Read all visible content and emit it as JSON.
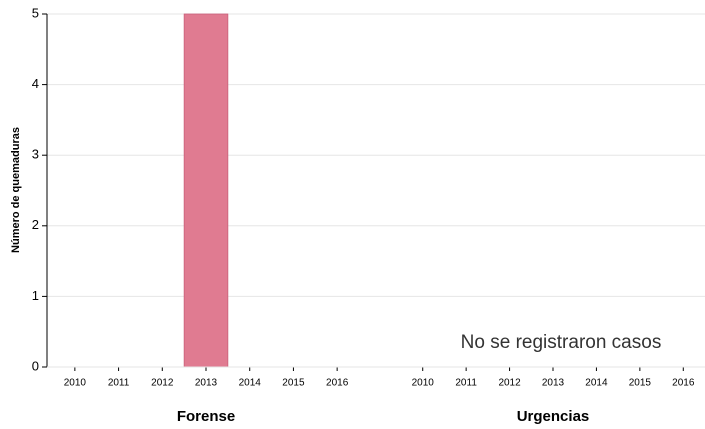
{
  "chart_data": {
    "type": "bar",
    "y_label": "Número de quemaduras",
    "ylim": [
      0,
      5
    ],
    "yticks": [
      0,
      1,
      2,
      3,
      4,
      5
    ],
    "grid": true,
    "panels": [
      {
        "title": "Forense",
        "color": "#e07b91",
        "categories": [
          "2010",
          "2011",
          "2012",
          "2013",
          "2014",
          "2015",
          "2016"
        ],
        "values": [
          0,
          0,
          0,
          5,
          0,
          0,
          0
        ]
      },
      {
        "title": "Urgencias",
        "color": "#e07b91",
        "categories": [
          "2010",
          "2011",
          "2012",
          "2013",
          "2014",
          "2015",
          "2016"
        ],
        "values": [
          0,
          0,
          0,
          0,
          0,
          0,
          0
        ],
        "annotation": "No se registraron casos"
      }
    ]
  }
}
